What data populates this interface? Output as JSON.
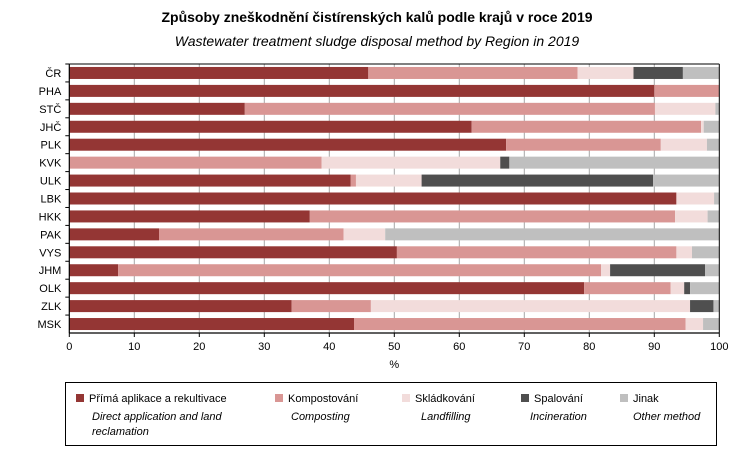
{
  "chart_data": {
    "type": "bar",
    "orientation": "horizontal",
    "stacked": true,
    "title": "Způsoby zneškodnění čistírenských kalů podle krajů v roce 2019",
    "subtitle": "Wastewater treatment sludge disposal method by Region in 2019",
    "xlabel": "%",
    "ylabel": "",
    "xlim": [
      0,
      100
    ],
    "xticks": [
      "0",
      "10",
      "20",
      "30",
      "40",
      "50",
      "60",
      "70",
      "80",
      "90",
      "100"
    ],
    "grid": true,
    "legend_position": "bottom",
    "categories": [
      "ČR",
      "PHA",
      "STČ",
      "JHČ",
      "PLK",
      "KVK",
      "ULK",
      "LBK",
      "HKK",
      "PAK",
      "VYS",
      "JHM",
      "OLK",
      "ZLK",
      "MSK"
    ],
    "series": [
      {
        "name": "Přímá aplikace a rekultivace",
        "name_en": "Direct application and land reclamation",
        "color": "#943634",
        "values": [
          46.0,
          90.0,
          27.0,
          61.9,
          67.2,
          0.0,
          43.3,
          93.4,
          37.0,
          13.8,
          50.4,
          7.5,
          79.2,
          34.2,
          43.8
        ]
      },
      {
        "name": "Kompostování",
        "name_en": "Composting",
        "color": "#D99694",
        "values": [
          32.2,
          10.0,
          63.1,
          35.3,
          23.8,
          38.8,
          0.8,
          0.0,
          56.2,
          28.4,
          43.0,
          74.3,
          13.3,
          12.2,
          51.0
        ]
      },
      {
        "name": "Skládkování",
        "name_en": "Landfilling",
        "color": "#F2DCDB",
        "values": [
          8.6,
          0.0,
          9.3,
          0.4,
          7.1,
          27.5,
          10.1,
          5.8,
          5.0,
          6.4,
          2.4,
          1.4,
          2.1,
          49.1,
          2.7
        ]
      },
      {
        "name": "Spalování",
        "name_en": "Incineration",
        "color": "#4F4F4F",
        "values": [
          7.6,
          0.0,
          0.0,
          0.0,
          0.0,
          1.4,
          35.6,
          0.0,
          0.0,
          0.0,
          0.0,
          14.6,
          0.9,
          3.6,
          0.0
        ]
      },
      {
        "name": "Jinak",
        "name_en": "Other method",
        "color": "#BFBFBF",
        "values": [
          5.6,
          0.0,
          0.6,
          2.4,
          1.9,
          32.3,
          10.2,
          0.8,
          1.8,
          51.4,
          4.2,
          2.2,
          4.5,
          0.9,
          2.5
        ]
      }
    ]
  }
}
